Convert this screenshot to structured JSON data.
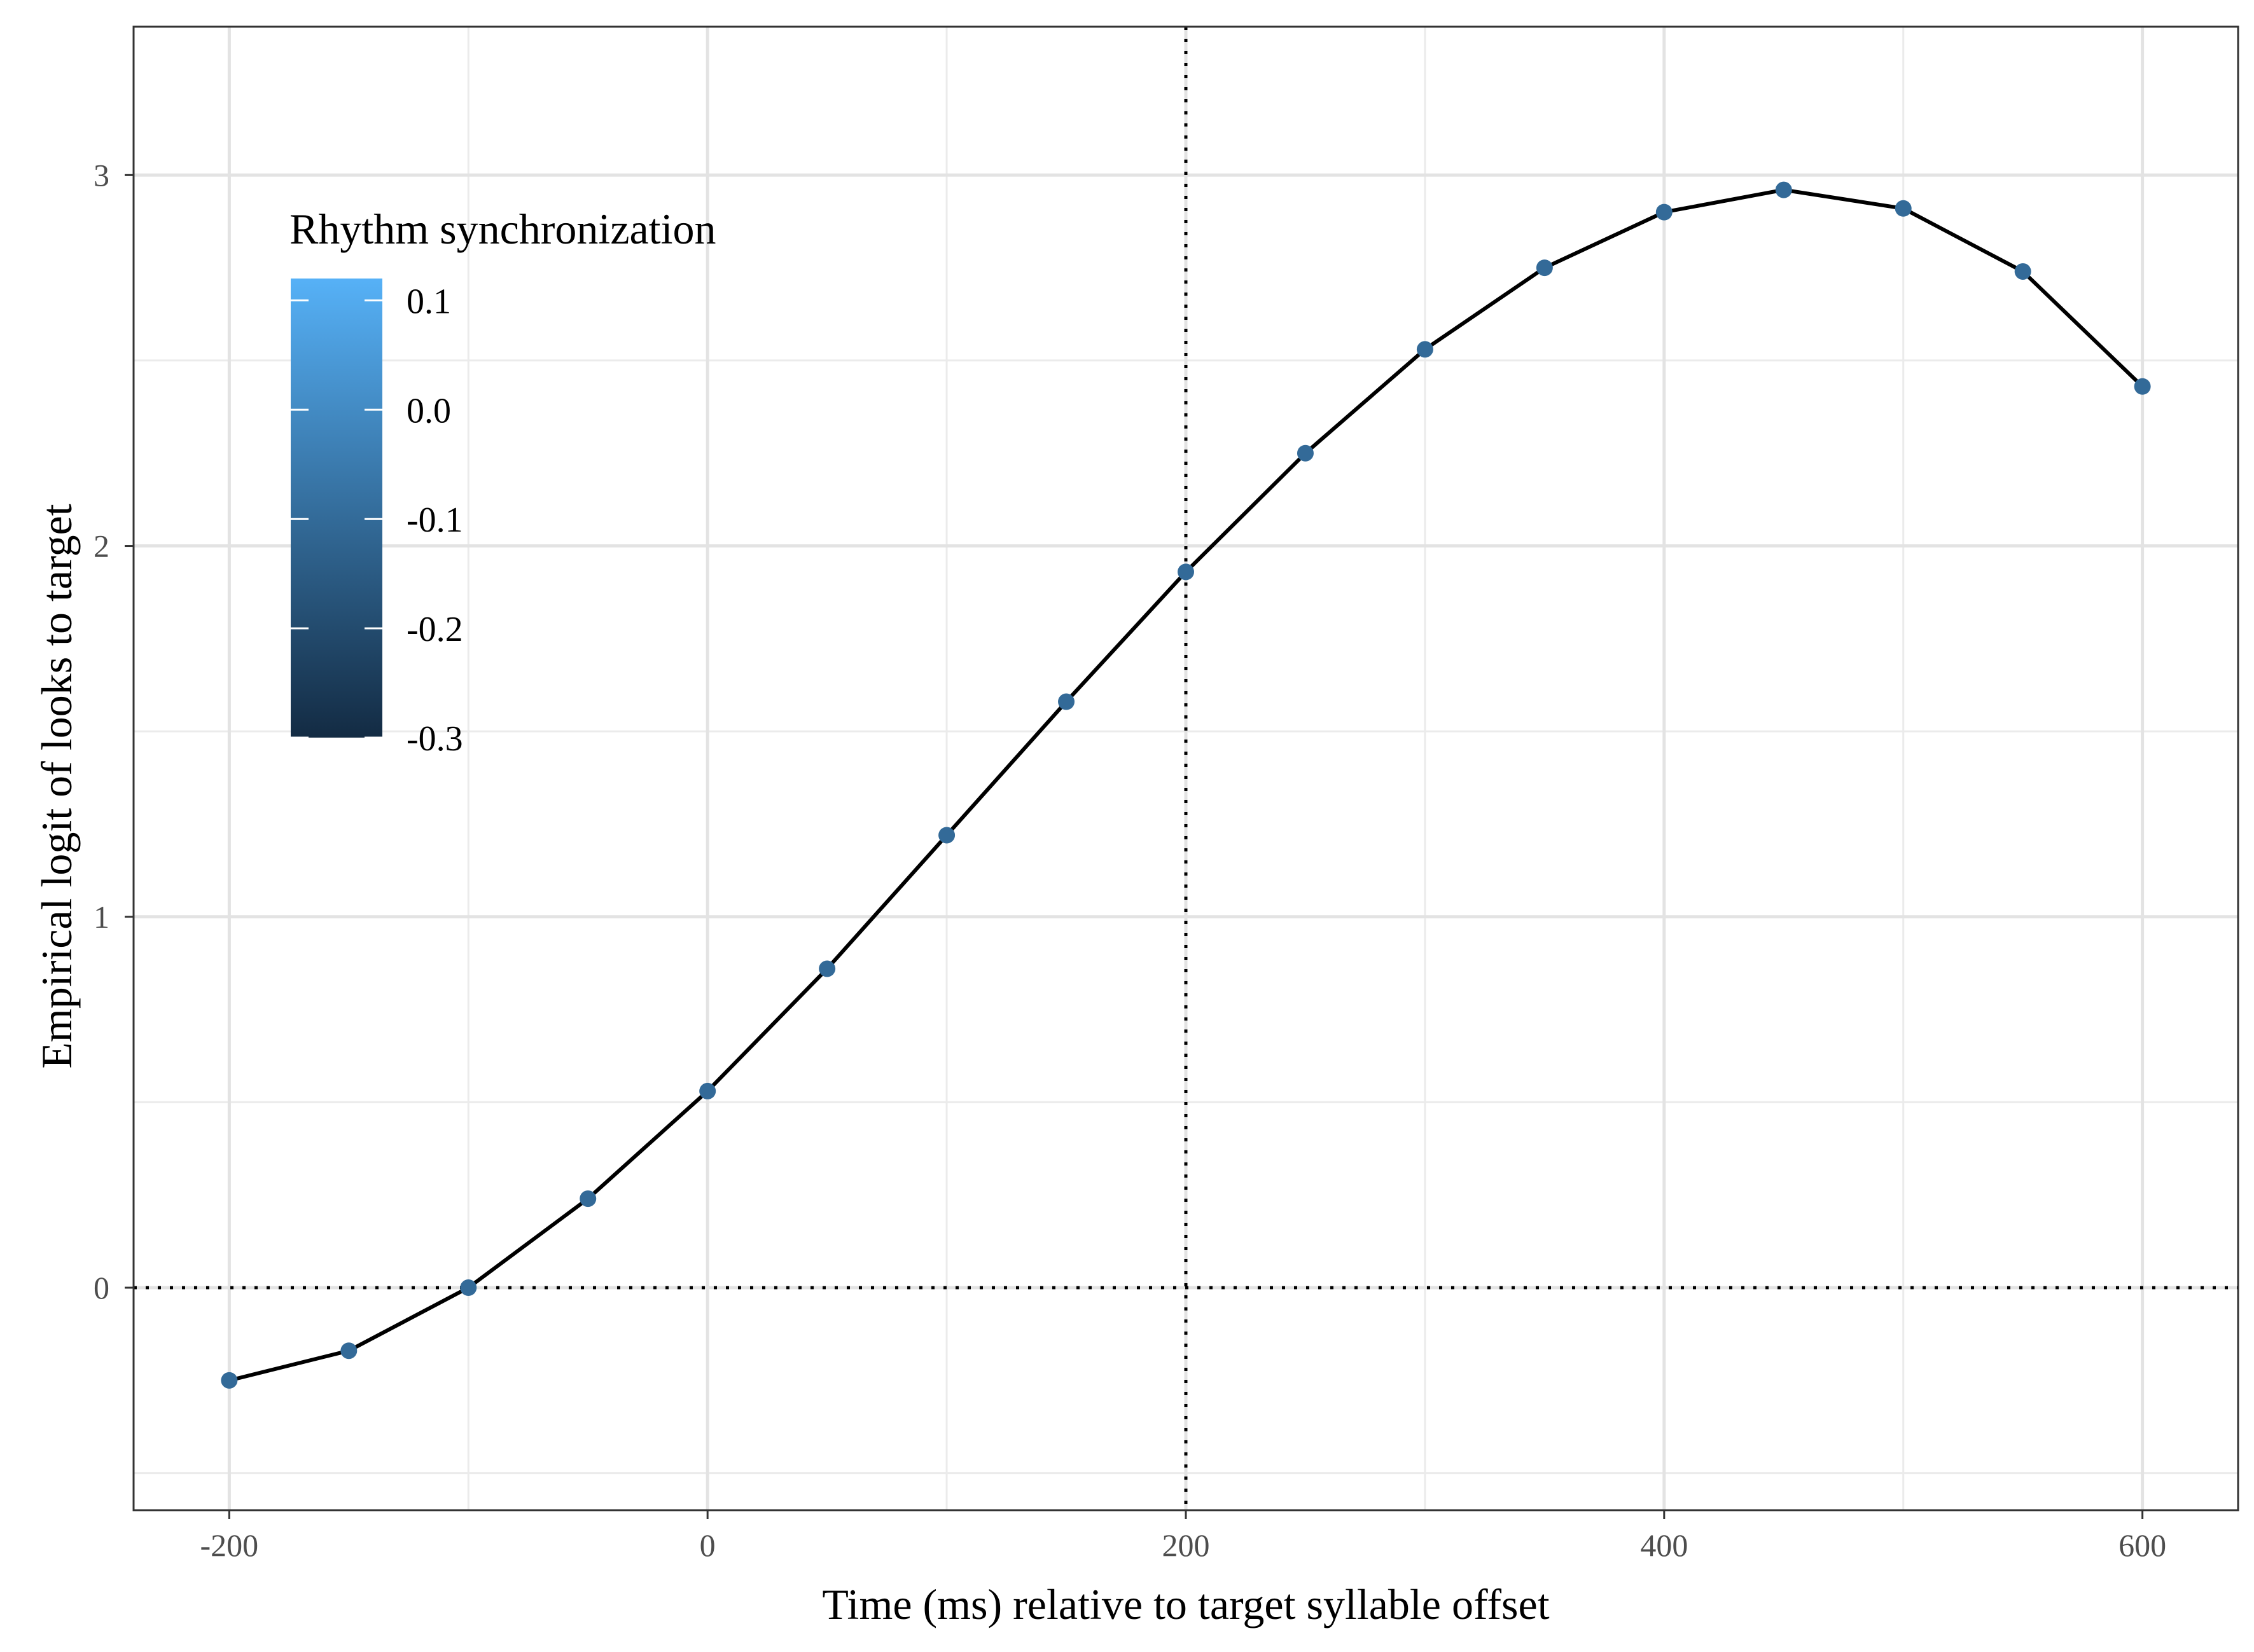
{
  "chart_data": {
    "type": "line",
    "xlabel": "Time (ms) relative to target syllable offset",
    "ylabel": "Empirical logit of looks to target",
    "xlim": [
      -240,
      640
    ],
    "ylim": [
      -0.6,
      3.4
    ],
    "x_ticks": [
      -200,
      0,
      200,
      400,
      600
    ],
    "x_tick_labels": [
      "-200",
      "0",
      "200",
      "400",
      "600"
    ],
    "y_ticks": [
      0,
      1,
      2,
      3
    ],
    "y_tick_labels": [
      "0",
      "1",
      "2",
      "3"
    ],
    "x_minor_ticks": [
      -100,
      100,
      300,
      500
    ],
    "y_minor_ticks": [
      -0.5,
      0.5,
      1.5,
      2.5
    ],
    "grid": true,
    "reference_lines": {
      "hline_y": 0,
      "vline_x": 200,
      "style": "dotted"
    },
    "line_color": "#000000",
    "point_color": "#336A98",
    "series": [
      {
        "x": [
          -200,
          -150,
          -100,
          -50,
          0,
          50,
          100,
          150,
          200,
          250,
          300,
          350,
          400,
          450,
          500,
          550,
          600
        ],
        "values": [
          -0.25,
          -0.17,
          0.0,
          0.24,
          0.53,
          0.86,
          1.22,
          1.58,
          1.93,
          2.25,
          2.53,
          2.75,
          2.9,
          2.96,
          2.91,
          2.74,
          2.43
        ]
      }
    ],
    "legend": {
      "title": "Rhythm synchronization",
      "position": "top-left",
      "type": "colorbar",
      "min": -0.3,
      "max": 0.12,
      "low_color": "#132B43",
      "high_color": "#56B1F7",
      "ticks": [
        0.1,
        0.0,
        -0.1,
        -0.2,
        -0.3
      ],
      "tick_labels": [
        "0.1",
        "0.0",
        "-0.1",
        "-0.2",
        "-0.3"
      ]
    }
  }
}
